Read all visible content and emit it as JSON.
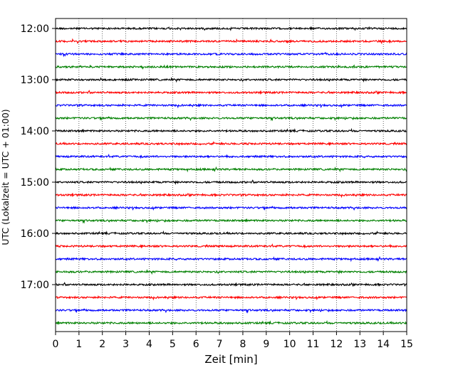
{
  "chart_data": {
    "type": "line",
    "xlabel": "Zeit  [min]",
    "ylabel": "UTC (Lokalzeit = UTC + 01:00)",
    "xlim": [
      0,
      15
    ],
    "x_ticks": [
      0,
      1,
      2,
      3,
      4,
      5,
      6,
      7,
      8,
      9,
      10,
      11,
      12,
      13,
      14,
      15
    ],
    "y_ticks": [
      "12:00",
      "13:00",
      "14:00",
      "15:00",
      "16:00",
      "17:00"
    ],
    "trace_interval_min": 15,
    "trace_start": "12:00",
    "trace_count": 24,
    "color_cycle": [
      "#000000",
      "#ff0000",
      "#0000ff",
      "#008000"
    ],
    "vertical_grid": "dotted",
    "traces": [
      {
        "start": "12:00",
        "color": "#000000"
      },
      {
        "start": "12:15",
        "color": "#ff0000"
      },
      {
        "start": "12:30",
        "color": "#0000ff"
      },
      {
        "start": "12:45",
        "color": "#008000"
      },
      {
        "start": "13:00",
        "color": "#000000"
      },
      {
        "start": "13:15",
        "color": "#ff0000"
      },
      {
        "start": "13:30",
        "color": "#0000ff"
      },
      {
        "start": "13:45",
        "color": "#008000"
      },
      {
        "start": "14:00",
        "color": "#000000"
      },
      {
        "start": "14:15",
        "color": "#ff0000"
      },
      {
        "start": "14:30",
        "color": "#0000ff"
      },
      {
        "start": "14:45",
        "color": "#008000"
      },
      {
        "start": "15:00",
        "color": "#000000"
      },
      {
        "start": "15:15",
        "color": "#ff0000"
      },
      {
        "start": "15:30",
        "color": "#0000ff"
      },
      {
        "start": "15:45",
        "color": "#008000"
      },
      {
        "start": "16:00",
        "color": "#000000"
      },
      {
        "start": "16:15",
        "color": "#ff0000"
      },
      {
        "start": "16:30",
        "color": "#0000ff"
      },
      {
        "start": "16:45",
        "color": "#008000"
      },
      {
        "start": "17:00",
        "color": "#000000"
      },
      {
        "start": "17:15",
        "color": "#ff0000"
      },
      {
        "start": "17:30",
        "color": "#0000ff"
      },
      {
        "start": "17:45",
        "color": "#008000"
      }
    ]
  }
}
